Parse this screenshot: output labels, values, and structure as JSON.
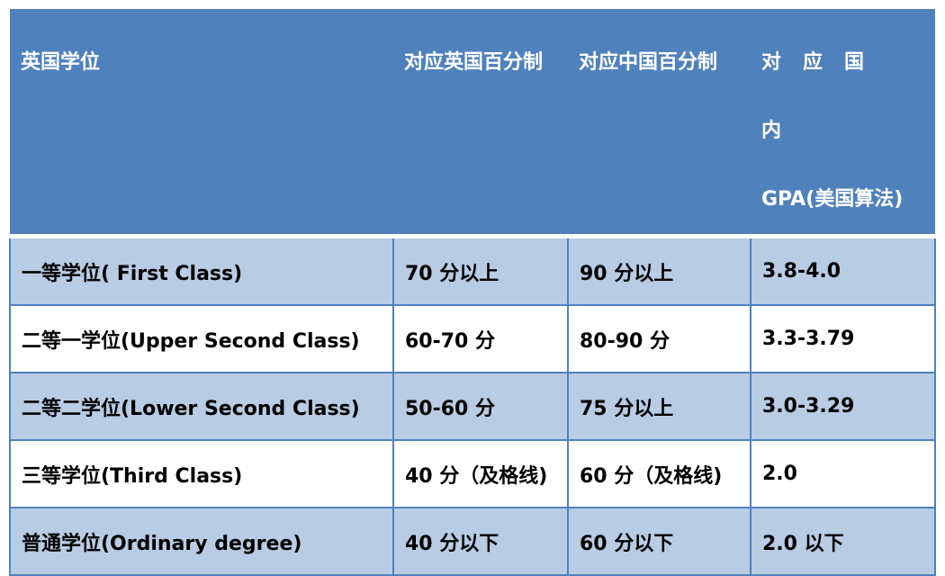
{
  "header": [
    "英国学位",
    "对应英国百分制",
    "对应中国百分制",
    "对应国内GPA(美国算法)"
  ],
  "header_display": {
    "col4_line1": "对应国内",
    "col4_line2": "GPA(美国算法)"
  },
  "rows": [
    [
      "一等学位( First Class)",
      "70 分以上",
      "90 分以上",
      "3.8-4.0"
    ],
    [
      "二等一学位(Upper Second Class)",
      "60-70 分",
      "80-90 分",
      "3.3-3.79"
    ],
    [
      "二等二学位(Lower Second Class)",
      "50-60 分",
      "75 分以上",
      "3.0-3.29"
    ],
    [
      "三等学位(Third Class)",
      "40 分（及格线)",
      "60 分（及格线)",
      "2.0"
    ],
    [
      "普通学位(Ordinary degree)",
      "40 分以下",
      "60 分以下",
      "2.0 以下"
    ]
  ],
  "colors": {
    "header_bg": "#4f81bd",
    "stripe": "#b8cce4",
    "border": "#4f81bd"
  }
}
